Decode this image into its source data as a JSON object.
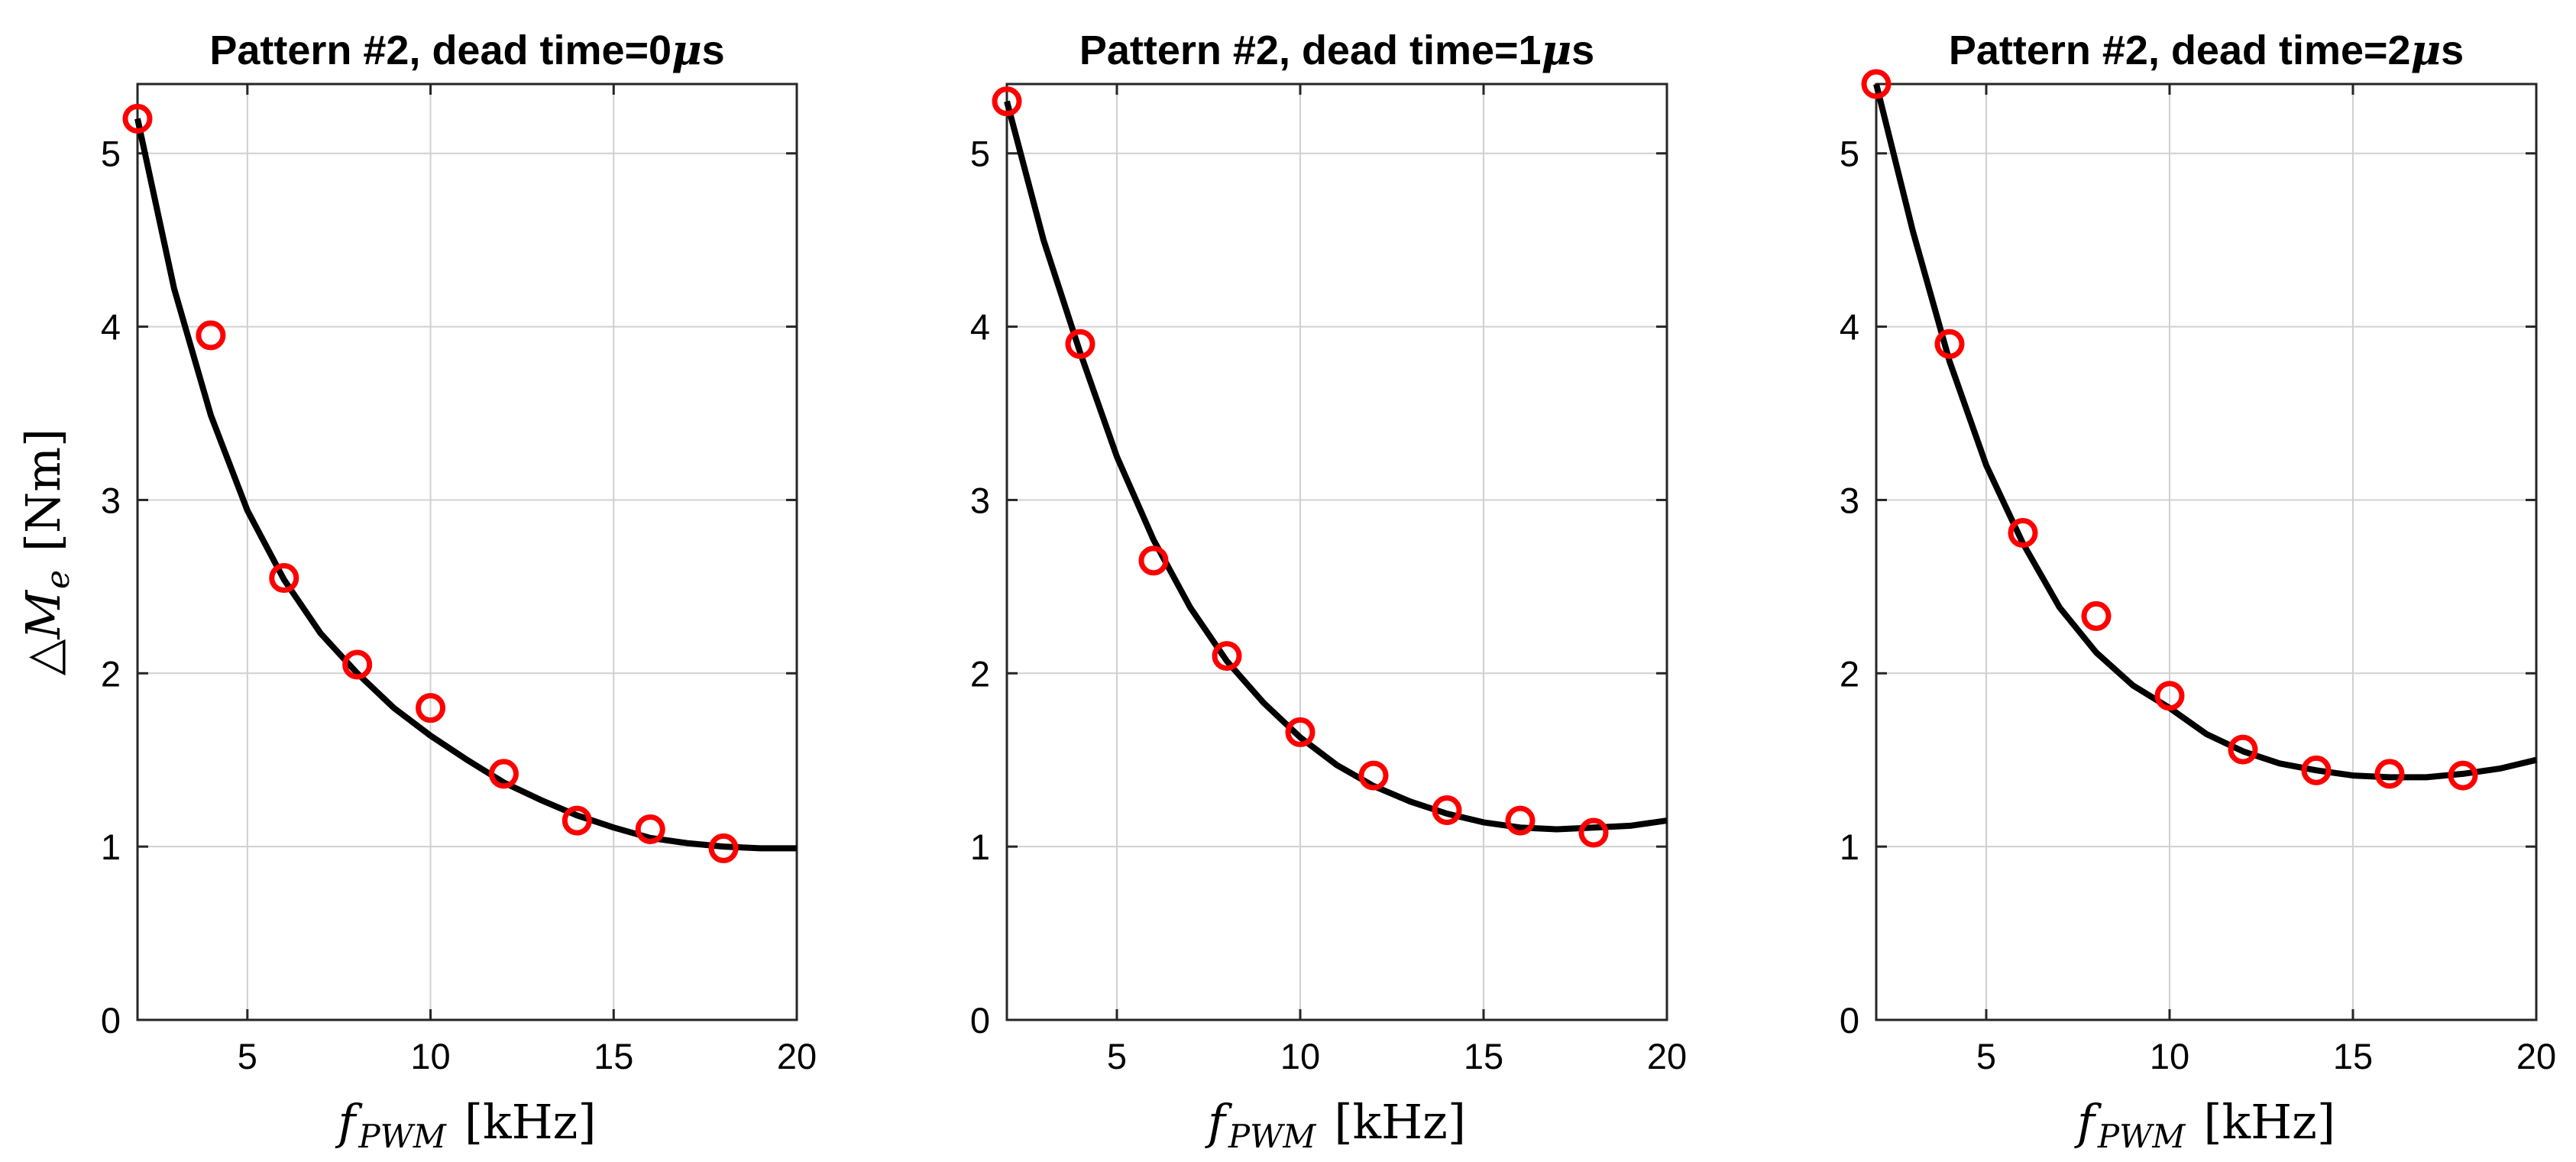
{
  "chart_data": [
    {
      "type": "scatter",
      "title_parts": [
        "Pattern #2, dead time=0",
        "μ",
        "s"
      ],
      "xlabel": {
        "symbol": "f",
        "subscript": "PWM",
        "unit": "[kHz]"
      },
      "ylabel": {
        "symbol": "△M",
        "subscript": "e",
        "unit": "[Nm]"
      },
      "xlim": [
        2,
        20
      ],
      "ylim": [
        0,
        5.4
      ],
      "xticks": [
        5,
        10,
        15,
        20
      ],
      "yticks": [
        0,
        1,
        2,
        3,
        4,
        5
      ],
      "grid": true,
      "series": [
        {
          "kind": "markers",
          "color": "#ff0000",
          "x": [
            2,
            4,
            6,
            8,
            10,
            12,
            14,
            16,
            18
          ],
          "y": [
            5.2,
            3.95,
            2.55,
            2.05,
            1.8,
            1.42,
            1.15,
            1.1,
            0.99
          ]
        },
        {
          "kind": "fit",
          "color": "#000000",
          "x": [
            2,
            3,
            4,
            5,
            6,
            7,
            8,
            9,
            10,
            11,
            12,
            13,
            14,
            15,
            16,
            17,
            18,
            19,
            20
          ],
          "y": [
            5.2,
            4.22,
            3.49,
            2.94,
            2.54,
            2.23,
            2.0,
            1.8,
            1.64,
            1.5,
            1.37,
            1.27,
            1.18,
            1.11,
            1.05,
            1.02,
            1.0,
            0.99,
            0.99
          ]
        }
      ]
    },
    {
      "type": "scatter",
      "title_parts": [
        "Pattern #2, dead time=1",
        "μ",
        "s"
      ],
      "xlabel": {
        "symbol": "f",
        "subscript": "PWM",
        "unit": "[kHz]"
      },
      "ylabel": null,
      "xlim": [
        2,
        20
      ],
      "ylim": [
        0,
        5.4
      ],
      "xticks": [
        5,
        10,
        15,
        20
      ],
      "yticks": [
        0,
        1,
        2,
        3,
        4,
        5
      ],
      "grid": true,
      "series": [
        {
          "kind": "markers",
          "color": "#ff0000",
          "x": [
            2,
            4,
            6,
            8,
            10,
            12,
            14,
            16,
            18
          ],
          "y": [
            5.3,
            3.9,
            2.65,
            2.1,
            1.66,
            1.41,
            1.21,
            1.15,
            1.08
          ]
        },
        {
          "kind": "fit",
          "color": "#000000",
          "x": [
            2,
            3,
            4,
            5,
            6,
            7,
            8,
            9,
            10,
            11,
            12,
            13,
            14,
            15,
            16,
            17,
            18,
            19,
            20
          ],
          "y": [
            5.3,
            4.5,
            3.85,
            3.25,
            2.77,
            2.38,
            2.07,
            1.83,
            1.63,
            1.47,
            1.35,
            1.26,
            1.19,
            1.14,
            1.11,
            1.1,
            1.11,
            1.12,
            1.15
          ]
        }
      ]
    },
    {
      "type": "scatter",
      "title_parts": [
        "Pattern #2, dead time=2",
        "μ",
        "s"
      ],
      "xlabel": {
        "symbol": "f",
        "subscript": "PWM",
        "unit": "[kHz]"
      },
      "ylabel": null,
      "xlim": [
        2,
        20
      ],
      "ylim": [
        0,
        5.4
      ],
      "xticks": [
        5,
        10,
        15,
        20
      ],
      "yticks": [
        0,
        1,
        2,
        3,
        4,
        5
      ],
      "grid": true,
      "series": [
        {
          "kind": "markers",
          "color": "#ff0000",
          "x": [
            2,
            4,
            6,
            8,
            10,
            12,
            14,
            16,
            18
          ],
          "y": [
            5.4,
            3.9,
            2.81,
            2.33,
            1.87,
            1.56,
            1.44,
            1.42,
            1.41
          ]
        },
        {
          "kind": "fit",
          "color": "#000000",
          "x": [
            2,
            3,
            4,
            5,
            6,
            7,
            8,
            9,
            10,
            11,
            12,
            13,
            14,
            15,
            16,
            17,
            18,
            19,
            20
          ],
          "y": [
            5.4,
            4.55,
            3.8,
            3.2,
            2.75,
            2.38,
            2.12,
            1.93,
            1.8,
            1.65,
            1.55,
            1.48,
            1.44,
            1.41,
            1.4,
            1.4,
            1.42,
            1.45,
            1.5
          ]
        }
      ]
    }
  ]
}
